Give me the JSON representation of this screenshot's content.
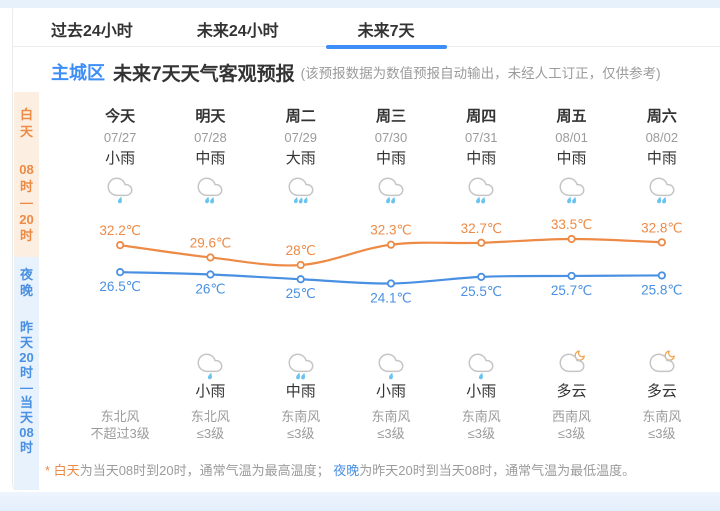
{
  "colors": {
    "accent_blue": "#3E8EF7",
    "high_line_orange": "#ED8A45",
    "low_line_blue": "#4A90E2",
    "rain_drop_blue": "#69C4F0",
    "day_sidebar_bg": "#FCEFE2",
    "night_sidebar_bg": "#E7F2FC",
    "page_strip_blue": "#E6F1FC"
  },
  "tabs": [
    {
      "label": "过去24小时",
      "active": false
    },
    {
      "label": "未来24小时",
      "active": false
    },
    {
      "label": "未来7天",
      "active": true
    }
  ],
  "header": {
    "region": "主城区",
    "title": "未来7天天气客观预报",
    "note": "(该预报数据为数值预报自动输出，未经人工订正，仅供参考)"
  },
  "sidebar": {
    "day": {
      "label": "白天",
      "time": "08时—20时",
      "label_lines": [
        "白",
        "天"
      ],
      "time_lines": [
        "08",
        "时",
        "—",
        "20",
        "时"
      ]
    },
    "night": {
      "label": "夜晚",
      "time": "昨天20时—当天08时",
      "label_lines": [
        "夜",
        "晚"
      ],
      "time_lines": [
        "昨",
        "天",
        "20",
        "时",
        "—",
        "当",
        "天",
        "08",
        "时"
      ]
    }
  },
  "columns": [
    {
      "name": "今天",
      "date": "07/27",
      "day_weather": "小雨",
      "day_icon": "light-rain",
      "day_icon_href": "#i-rain1",
      "night_weather": "",
      "night_icon": null,
      "night_icon_href": null,
      "wind_dir": "东北风",
      "wind_level": "不超过3级"
    },
    {
      "name": "明天",
      "date": "07/28",
      "day_weather": "中雨",
      "day_icon": "moderate-rain",
      "day_icon_href": "#i-rain2",
      "night_weather": "小雨",
      "night_icon": "light-rain",
      "night_icon_href": "#i-rain1",
      "wind_dir": "东北风",
      "wind_level": "≤3级"
    },
    {
      "name": "周二",
      "date": "07/29",
      "day_weather": "大雨",
      "day_icon": "heavy-rain",
      "day_icon_href": "#i-rain3",
      "night_weather": "中雨",
      "night_icon": "moderate-rain",
      "night_icon_href": "#i-rain2",
      "wind_dir": "东南风",
      "wind_level": "≤3级"
    },
    {
      "name": "周三",
      "date": "07/30",
      "day_weather": "中雨",
      "day_icon": "moderate-rain",
      "day_icon_href": "#i-rain2",
      "night_weather": "小雨",
      "night_icon": "light-rain",
      "night_icon_href": "#i-rain1",
      "wind_dir": "东南风",
      "wind_level": "≤3级"
    },
    {
      "name": "周四",
      "date": "07/31",
      "day_weather": "中雨",
      "day_icon": "moderate-rain",
      "day_icon_href": "#i-rain2",
      "night_weather": "小雨",
      "night_icon": "light-rain",
      "night_icon_href": "#i-rain1",
      "wind_dir": "东南风",
      "wind_level": "≤3级"
    },
    {
      "name": "周五",
      "date": "08/01",
      "day_weather": "中雨",
      "day_icon": "moderate-rain",
      "day_icon_href": "#i-rain2",
      "night_weather": "多云",
      "night_icon": "cloudy-moon",
      "night_icon_href": "#i-cloudmoon",
      "wind_dir": "西南风",
      "wind_level": "≤3级"
    },
    {
      "name": "周六",
      "date": "08/02",
      "day_weather": "中雨",
      "day_icon": "moderate-rain",
      "day_icon_href": "#i-rain2",
      "night_weather": "多云",
      "night_icon": "cloudy-moon",
      "night_icon_href": "#i-cloudmoon",
      "wind_dir": "东南风",
      "wind_level": "≤3级"
    }
  ],
  "chart_data": {
    "type": "line",
    "categories": [
      "今天 07/27",
      "明天 07/28",
      "周二 07/29",
      "周三 07/30",
      "周四 07/31",
      "周五 08/01",
      "周六 08/02"
    ],
    "series": [
      {
        "name": "白天",
        "color": "#ED8A45",
        "unit": "℃",
        "label_position": "above",
        "values": [
          32.2,
          29.6,
          28,
          32.3,
          32.7,
          33.5,
          32.8
        ]
      },
      {
        "name": "夜晚",
        "color": "#4A90E2",
        "unit": "℃",
        "label_position": "below",
        "values": [
          26.5,
          26,
          25,
          24.1,
          25.5,
          25.7,
          25.8
        ]
      }
    ],
    "ylim": [
      24.1,
      33.5
    ],
    "grid": false,
    "legend": "none"
  },
  "footnote": {
    "star": "* ",
    "day_label": "白天",
    "day_text": "为当天08时到20时，通常气温为最高温度； ",
    "night_label": "夜晚",
    "night_text": "为昨天20时到当天08时，通常气温为最低温度。"
  }
}
